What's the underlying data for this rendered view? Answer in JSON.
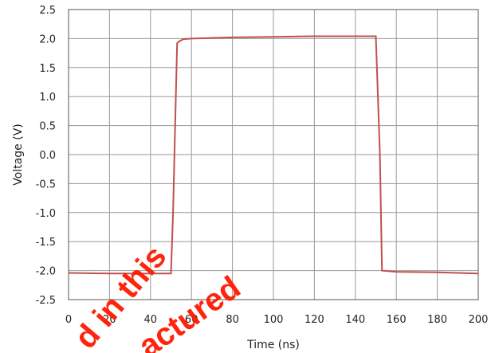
{
  "chart_data": {
    "type": "line",
    "title": "",
    "xlabel": "Time (ns)",
    "ylabel": "Voltage (V)",
    "xlim": [
      0,
      200
    ],
    "ylim": [
      -2.5,
      2.5
    ],
    "x_ticks": [
      "0",
      "20",
      "40",
      "60",
      "80",
      "100",
      "120",
      "140",
      "160",
      "180",
      "200"
    ],
    "y_ticks": [
      "2.5",
      "2.0",
      "1.5",
      "1.0",
      "0.5",
      "0.0",
      "-0.5",
      "-1.0",
      "-1.5",
      "-2.0",
      "-2.5"
    ],
    "grid": true,
    "legend": "none",
    "series": [
      {
        "color": "#c0504d",
        "x": [
          0,
          20,
          40,
          50,
          51,
          53,
          54,
          56,
          60,
          80,
          100,
          120,
          140,
          150,
          152,
          153,
          160,
          180,
          200
        ],
        "y": [
          -2.04,
          -2.05,
          -2.05,
          -2.05,
          -1.0,
          1.92,
          1.95,
          1.99,
          2.0,
          2.02,
          2.03,
          2.04,
          2.04,
          2.04,
          0.0,
          -2.0,
          -2.02,
          -2.03,
          -2.05
        ]
      }
    ]
  },
  "watermark": {
    "lines": [
      "d in this",
      "actured"
    ],
    "color": "#ff1a00"
  }
}
